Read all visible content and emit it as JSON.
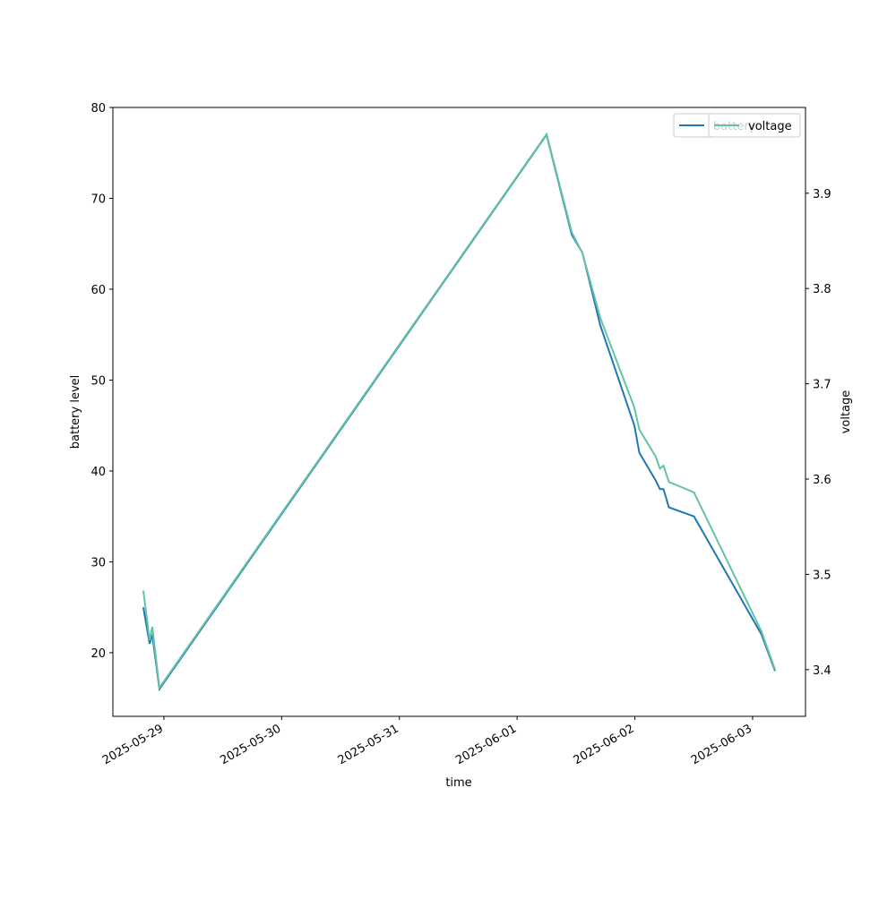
{
  "chart_data": {
    "type": "line",
    "x_label": "time",
    "y_label": "battery level",
    "y2_label": "voltage",
    "x": [
      "2025-05-28T19:48",
      "2025-05-28T21:05",
      "2025-05-28T21:38",
      "2025-05-28T23:05",
      "2025-06-01T06:00",
      "2025-06-01T11:08",
      "2025-06-01T13:19",
      "2025-06-01T16:58",
      "2025-06-01T23:54",
      "2025-06-02T00:55",
      "2025-06-02T04:12",
      "2025-06-02T05:07",
      "2025-06-02T05:50",
      "2025-06-02T06:56",
      "2025-06-02T12:03",
      "2025-06-03T01:49",
      "2025-06-03T04:34"
    ],
    "series": [
      {
        "name": "battery",
        "color": "#1f77b4",
        "legend": "upper right",
        "values": [
          25,
          21,
          22,
          16,
          77,
          66,
          64,
          56,
          45,
          42,
          39,
          38,
          38,
          36,
          35,
          22,
          18
        ]
      },
      {
        "name": "voltage",
        "color": "#66c2a5",
        "axis": "y2",
        "legend": "upper right",
        "values": [
          3.483,
          3.431,
          3.445,
          3.381,
          3.962,
          3.859,
          3.837,
          3.769,
          3.675,
          3.652,
          3.624,
          3.611,
          3.614,
          3.597,
          3.586,
          3.44,
          3.4
        ]
      }
    ],
    "xlim": [
      "2025-05-28T13:36",
      "2025-06-03T10:47"
    ],
    "xticks": [
      "2025-05-29",
      "2025-05-30",
      "2025-05-31",
      "2025-06-01",
      "2025-06-02",
      "2025-06-03"
    ],
    "ylim": [
      13.0,
      80
    ],
    "yticks": [
      20,
      30,
      40,
      50,
      60,
      70,
      80
    ],
    "y2lim": [
      3.351,
      3.99
    ],
    "y2ticks": [
      3.4,
      3.5,
      3.6,
      3.7,
      3.8,
      3.9
    ],
    "grid": false
  }
}
